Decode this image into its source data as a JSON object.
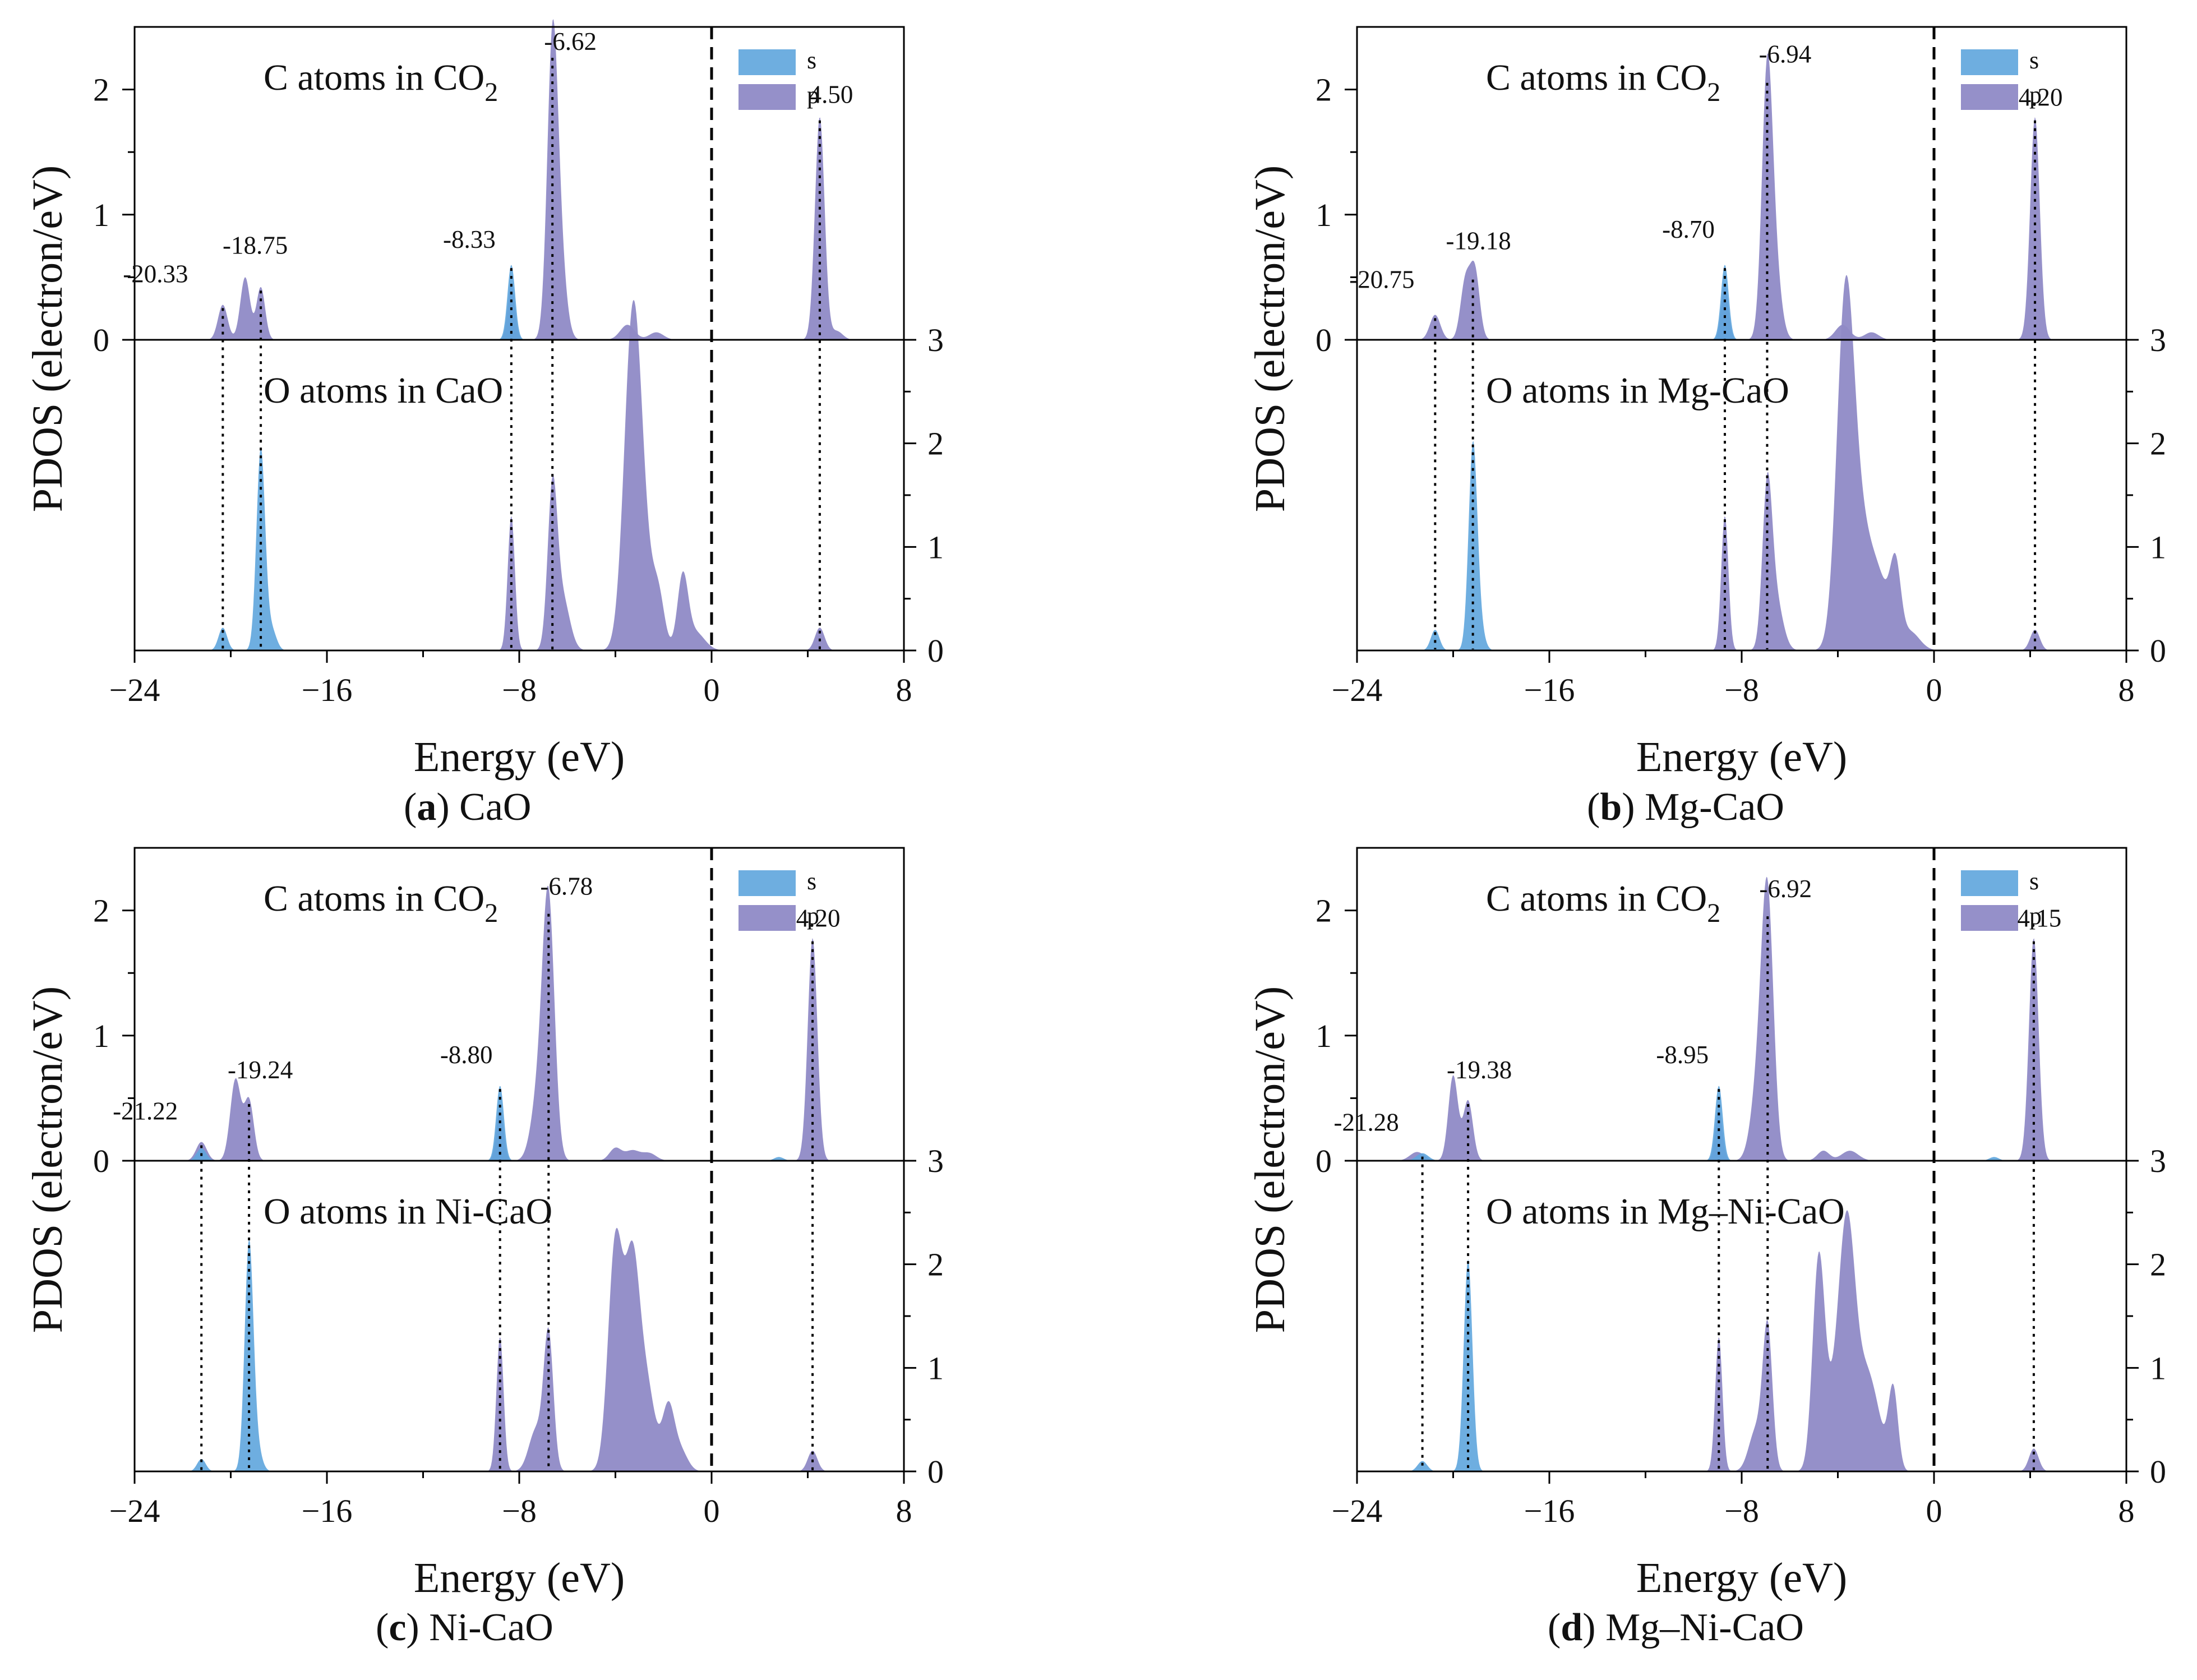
{
  "figure": {
    "colors": {
      "s": "#5ea5dd",
      "p": "#8f8ac6"
    }
  },
  "chart_data": [
    {
      "type": "area",
      "caption_letter": "a",
      "caption_text": "CaO",
      "ylabel": "PDOS (electron/eV)",
      "xlabel": "Energy (eV)",
      "xlim": [
        -24,
        8
      ],
      "xticks": [
        "−24",
        "−16",
        "−8",
        "0",
        "8"
      ],
      "top_ylim": [
        0,
        2.5
      ],
      "top_yticks": [
        "0",
        "1",
        "2"
      ],
      "bottom_ylim": [
        0,
        3
      ],
      "bottom_yticks": [
        "0",
        "1",
        "2",
        "3"
      ],
      "top_title": "C atoms in CO",
      "top_title_sub": "2",
      "bottom_title": "O atoms in CaO",
      "legend": [
        "s",
        "p"
      ],
      "peak_labels": [
        "-20.33",
        "-18.75",
        "-8.33",
        "-6.62",
        "4.50"
      ],
      "dotted_lines": [
        -20.33,
        -18.75,
        -8.33,
        -6.62,
        4.5
      ],
      "top_series": {
        "s": [
          [
            -8.33,
            0.6,
            0.16
          ]
        ],
        "p": [
          [
            -20.33,
            0.28,
            0.2
          ],
          [
            -19.4,
            0.5,
            0.2
          ],
          [
            -18.75,
            0.42,
            0.18
          ],
          [
            -8.33,
            0.45,
            0.15
          ],
          [
            -6.62,
            2.28,
            0.22
          ],
          [
            -6.3,
            0.6,
            0.25
          ],
          [
            -3.5,
            0.12,
            0.3
          ],
          [
            -2.3,
            0.06,
            0.3
          ],
          [
            4.5,
            1.78,
            0.2
          ],
          [
            5.2,
            0.07,
            0.25
          ]
        ]
      },
      "bottom_series": {
        "s": [
          [
            -20.33,
            0.22,
            0.18
          ],
          [
            -18.75,
            1.95,
            0.18
          ],
          [
            -18.3,
            0.2,
            0.2
          ]
        ],
        "p": [
          [
            -8.33,
            1.3,
            0.15
          ],
          [
            -6.62,
            1.5,
            0.2
          ],
          [
            -6.2,
            0.5,
            0.3
          ],
          [
            -3.3,
            2.8,
            0.35
          ],
          [
            -2.9,
            0.9,
            0.4
          ],
          [
            -2.2,
            0.45,
            0.25
          ],
          [
            -1.2,
            0.68,
            0.22
          ],
          [
            -0.7,
            0.18,
            0.4
          ],
          [
            4.5,
            0.22,
            0.2
          ]
        ]
      }
    },
    {
      "type": "area",
      "caption_letter": "b",
      "caption_text": "Mg-CaO",
      "ylabel": "PDOS (electron/eV)",
      "xlabel": "Energy (eV)",
      "xlim": [
        -24,
        8
      ],
      "xticks": [
        "−24",
        "−16",
        "−8",
        "0",
        "8"
      ],
      "top_ylim": [
        0,
        2.5
      ],
      "top_yticks": [
        "0",
        "1",
        "2"
      ],
      "bottom_ylim": [
        0,
        3
      ],
      "bottom_yticks": [
        "0",
        "1",
        "2",
        "3"
      ],
      "top_title": "C atoms in CO",
      "top_title_sub": "2",
      "bottom_title": "O atoms in Mg-CaO",
      "legend": [
        "s",
        "p"
      ],
      "peak_labels": [
        "-20.75",
        "-19.18",
        "-8.70",
        "-6.94",
        "4.20"
      ],
      "dotted_lines": [
        -20.75,
        -19.18,
        -8.7,
        -6.94,
        4.2
      ],
      "top_series": {
        "s": [
          [
            -8.7,
            0.6,
            0.16
          ]
        ],
        "p": [
          [
            -20.75,
            0.2,
            0.22
          ],
          [
            -19.5,
            0.45,
            0.2
          ],
          [
            -19.1,
            0.55,
            0.2
          ],
          [
            -8.7,
            0.45,
            0.15
          ],
          [
            -6.94,
            2.08,
            0.22
          ],
          [
            -6.6,
            0.5,
            0.25
          ],
          [
            -3.8,
            0.12,
            0.3
          ],
          [
            -2.6,
            0.06,
            0.3
          ],
          [
            4.2,
            1.78,
            0.2
          ]
        ]
      },
      "bottom_series": {
        "s": [
          [
            -20.75,
            0.2,
            0.18
          ],
          [
            -19.18,
            1.95,
            0.18
          ],
          [
            -18.9,
            0.2,
            0.2
          ]
        ],
        "p": [
          [
            -8.7,
            1.3,
            0.15
          ],
          [
            -6.94,
            1.45,
            0.2
          ],
          [
            -6.6,
            0.5,
            0.3
          ],
          [
            -3.7,
            3.0,
            0.35
          ],
          [
            -3.1,
            1.2,
            0.5
          ],
          [
            -2.2,
            0.5,
            0.4
          ],
          [
            -1.6,
            0.7,
            0.22
          ],
          [
            -1.0,
            0.18,
            0.4
          ],
          [
            4.2,
            0.2,
            0.2
          ]
        ]
      }
    },
    {
      "type": "area",
      "caption_letter": "c",
      "caption_text": "Ni-CaO",
      "ylabel": "PDOS (electron/eV)",
      "xlabel": "Energy (eV)",
      "xlim": [
        -24,
        8
      ],
      "xticks": [
        "−24",
        "−16",
        "−8",
        "0",
        "8"
      ],
      "top_ylim": [
        0,
        2.5
      ],
      "top_yticks": [
        "0",
        "1",
        "2"
      ],
      "bottom_ylim": [
        0,
        3
      ],
      "bottom_yticks": [
        "0",
        "1",
        "2",
        "3"
      ],
      "top_title": "C atoms in CO",
      "top_title_sub": "2",
      "bottom_title": "O atoms in Ni-CaO",
      "legend": [
        "s",
        "p"
      ],
      "peak_labels": [
        "-21.22",
        "-19.24",
        "-8.80",
        "-6.78",
        "4.20"
      ],
      "dotted_lines": [
        -21.22,
        -19.24,
        -8.8,
        -6.78,
        4.2
      ],
      "top_series": {
        "s": [
          [
            -21.22,
            0.1,
            0.2
          ],
          [
            -8.8,
            0.6,
            0.16
          ],
          [
            2.8,
            0.03,
            0.2
          ]
        ],
        "p": [
          [
            -21.22,
            0.15,
            0.22
          ],
          [
            -19.8,
            0.65,
            0.22
          ],
          [
            -19.24,
            0.48,
            0.2
          ],
          [
            -8.8,
            0.42,
            0.15
          ],
          [
            -6.78,
            2.0,
            0.25
          ],
          [
            -7.2,
            0.5,
            0.3
          ],
          [
            -4.0,
            0.1,
            0.25
          ],
          [
            -3.3,
            0.08,
            0.3
          ],
          [
            -2.6,
            0.06,
            0.3
          ],
          [
            4.2,
            1.78,
            0.2
          ]
        ]
      },
      "bottom_series": {
        "s": [
          [
            -21.22,
            0.12,
            0.18
          ],
          [
            -19.24,
            2.2,
            0.18
          ],
          [
            -18.9,
            0.2,
            0.2
          ]
        ],
        "p": [
          [
            -8.8,
            1.3,
            0.15
          ],
          [
            -6.78,
            1.3,
            0.2
          ],
          [
            -7.3,
            0.4,
            0.3
          ],
          [
            -4.0,
            2.2,
            0.3
          ],
          [
            -3.3,
            1.9,
            0.3
          ],
          [
            -2.7,
            0.8,
            0.35
          ],
          [
            -1.8,
            0.6,
            0.25
          ],
          [
            -1.3,
            0.2,
            0.3
          ],
          [
            4.2,
            0.2,
            0.2
          ]
        ]
      }
    },
    {
      "type": "area",
      "caption_letter": "d",
      "caption_text": "Mg–Ni-CaO",
      "ylabel": "PDOS (electron/eV)",
      "xlabel": "Energy (eV)",
      "xlim": [
        -24,
        8
      ],
      "xticks": [
        "−24",
        "−16",
        "−8",
        "0",
        "8"
      ],
      "top_ylim": [
        0,
        2.5
      ],
      "top_yticks": [
        "0",
        "1",
        "2"
      ],
      "bottom_ylim": [
        0,
        3
      ],
      "bottom_yticks": [
        "0",
        "1",
        "2",
        "3"
      ],
      "top_title": "C atoms in CO",
      "top_title_sub": "2",
      "bottom_title": "O atoms in Mg–Ni-CaO",
      "legend": [
        "s",
        "p"
      ],
      "peak_labels": [
        "-21.28",
        "-19.38",
        "-8.95",
        "-6.92",
        "4.15"
      ],
      "dotted_lines": [
        -21.28,
        -19.38,
        -8.95,
        -6.92,
        4.15
      ],
      "top_series": {
        "s": [
          [
            -21.28,
            0.06,
            0.25
          ],
          [
            -8.95,
            0.6,
            0.16
          ],
          [
            2.5,
            0.03,
            0.2
          ]
        ],
        "p": [
          [
            -21.5,
            0.07,
            0.3
          ],
          [
            -20.0,
            0.68,
            0.2
          ],
          [
            -19.38,
            0.48,
            0.2
          ],
          [
            -8.95,
            0.42,
            0.15
          ],
          [
            -6.92,
            1.98,
            0.25
          ],
          [
            -7.3,
            0.6,
            0.3
          ],
          [
            -4.6,
            0.08,
            0.25
          ],
          [
            -3.5,
            0.08,
            0.35
          ],
          [
            4.15,
            1.78,
            0.2
          ]
        ]
      },
      "bottom_series": {
        "s": [
          [
            -21.28,
            0.1,
            0.2
          ],
          [
            -19.38,
            2.05,
            0.18
          ]
        ],
        "p": [
          [
            -8.95,
            1.3,
            0.15
          ],
          [
            -6.92,
            1.35,
            0.2
          ],
          [
            -7.4,
            0.4,
            0.3
          ],
          [
            -4.8,
            1.95,
            0.25
          ],
          [
            -3.6,
            2.3,
            0.35
          ],
          [
            -4.2,
            0.5,
            0.4
          ],
          [
            -2.8,
            0.8,
            0.35
          ],
          [
            -1.7,
            0.8,
            0.2
          ],
          [
            -2.3,
            0.3,
            0.3
          ],
          [
            4.15,
            0.22,
            0.2
          ]
        ]
      }
    }
  ]
}
